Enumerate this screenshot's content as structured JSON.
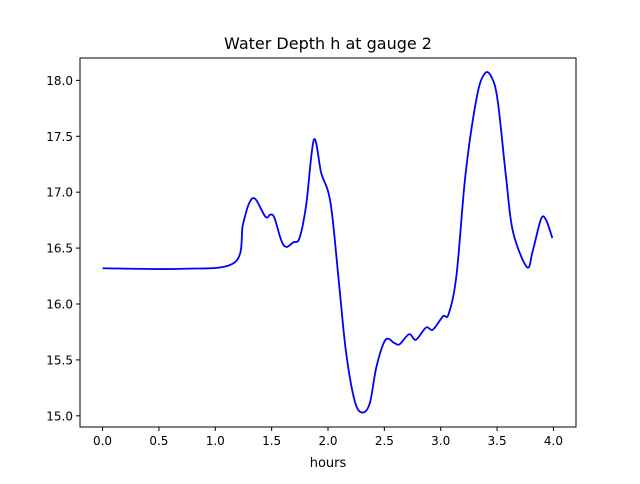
{
  "chart_data": {
    "type": "line",
    "title": "Water Depth h at gauge 2",
    "xlabel": "hours",
    "ylabel": "",
    "xlim": [
      -0.2,
      4.2
    ],
    "ylim": [
      14.9,
      18.2
    ],
    "xticks": [
      0.0,
      0.5,
      1.0,
      1.5,
      2.0,
      2.5,
      3.0,
      3.5,
      4.0
    ],
    "xtick_labels": [
      "0.0",
      "0.5",
      "1.0",
      "1.5",
      "2.0",
      "2.5",
      "3.0",
      "3.5",
      "4.0"
    ],
    "yticks": [
      15.0,
      15.5,
      16.0,
      16.5,
      17.0,
      17.5,
      18.0
    ],
    "ytick_labels": [
      "15.0",
      "15.5",
      "16.0",
      "16.5",
      "17.0",
      "17.5",
      "18.0"
    ],
    "grid": false,
    "series": [
      {
        "name": "h",
        "color": "#0000ff",
        "x": [
          0.0,
          0.71,
          1.17,
          1.245,
          1.3,
          1.355,
          1.445,
          1.49,
          1.525,
          1.585,
          1.63,
          1.69,
          1.747,
          1.807,
          1.875,
          1.94,
          2.0,
          2.04,
          2.1,
          2.16,
          2.235,
          2.3,
          2.37,
          2.43,
          2.51,
          2.59,
          2.635,
          2.72,
          2.78,
          2.87,
          2.93,
          3.02,
          3.07,
          3.14,
          3.22,
          3.32,
          3.39,
          3.45,
          3.505,
          3.58,
          3.64,
          3.765,
          3.815,
          3.89,
          3.935,
          3.99
        ],
        "y": [
          16.32,
          16.315,
          16.37,
          16.71,
          16.9,
          16.94,
          16.78,
          16.8,
          16.77,
          16.57,
          16.51,
          16.55,
          16.59,
          16.89,
          17.47,
          17.17,
          17.01,
          16.77,
          16.16,
          15.57,
          15.14,
          15.03,
          15.11,
          15.44,
          15.68,
          15.65,
          15.64,
          15.73,
          15.68,
          15.79,
          15.77,
          15.89,
          15.91,
          16.26,
          17.16,
          17.85,
          18.06,
          18.03,
          17.82,
          17.13,
          16.65,
          16.33,
          16.47,
          16.76,
          16.75,
          16.59
        ]
      }
    ]
  }
}
